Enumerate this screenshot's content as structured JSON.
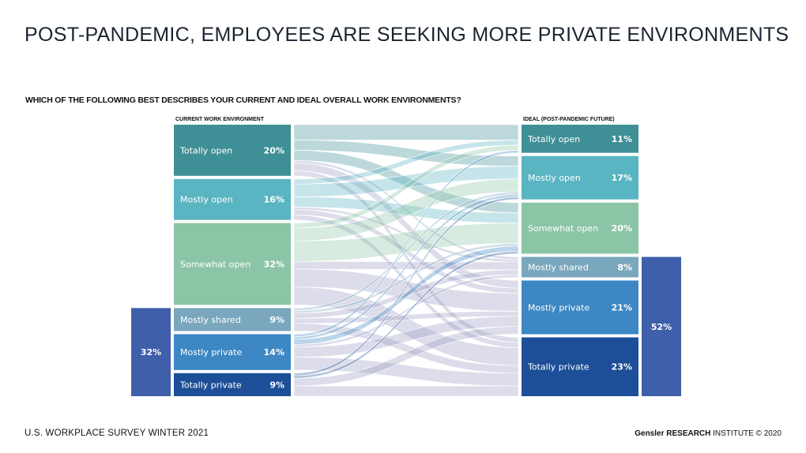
{
  "title": "POST-PANDEMIC, EMPLOYEES ARE SEEKING MORE PRIVATE ENVIRONMENTS",
  "question": "WHICH OF THE FOLLOWING BEST DESCRIBES YOUR CURRENT AND IDEAL OVERALL WORK ENVIRONMENTS?",
  "footer": {
    "survey": "U.S. WORKPLACE SURVEY WINTER 2021",
    "brand": "Gensler RESEARCH",
    "institute": "INSTITUTE © 2020"
  },
  "chart_data": {
    "type": "sankey",
    "left_header": "CURRENT WORK ENVIRONMENT",
    "right_header": "IDEAL (POST-PANDEMIC FUTURE)",
    "left": [
      {
        "label": "Totally open",
        "value": 20,
        "display": "20%",
        "color": "#3f8f96"
      },
      {
        "label": "Mostly open",
        "value": 16,
        "display": "16%",
        "color": "#5ab5c2"
      },
      {
        "label": "Somewhat open",
        "value": 32,
        "display": "32%",
        "color": "#8cc5a6"
      },
      {
        "label": "Mostly shared",
        "value": 9,
        "display": "9%",
        "color": "#7aa7bd"
      },
      {
        "label": "Mostly private",
        "value": 14,
        "display": "14%",
        "color": "#3d87c4"
      },
      {
        "label": "Totally private",
        "value": 9,
        "display": "9%",
        "color": "#1d4f98"
      }
    ],
    "right": [
      {
        "label": "Totally open",
        "value": 11,
        "display": "11%",
        "color": "#3f8f96"
      },
      {
        "label": "Mostly open",
        "value": 17,
        "display": "17%",
        "color": "#5ab5c2"
      },
      {
        "label": "Somewhat open",
        "value": 20,
        "display": "20%",
        "color": "#8cc5a6"
      },
      {
        "label": "Mostly shared",
        "value": 8,
        "display": "8%",
        "color": "#7aa7bd"
      },
      {
        "label": "Mostly private",
        "value": 21,
        "display": "21%",
        "color": "#3d87c4"
      },
      {
        "label": "Totally private",
        "value": 23,
        "display": "23%",
        "color": "#1d4f98"
      }
    ],
    "left_group": {
      "display": "32%",
      "color": "#3f5faa"
    },
    "right_group": {
      "display": "52%",
      "color": "#3f5faa"
    },
    "flows": [
      [
        6,
        4,
        4,
        1,
        3,
        2
      ],
      [
        2,
        5,
        4,
        1,
        2,
        2
      ],
      [
        2,
        5,
        8,
        3,
        7,
        7
      ],
      [
        0,
        1,
        1,
        2,
        2,
        3
      ],
      [
        1,
        1,
        2,
        1,
        4,
        5
      ],
      [
        0,
        1,
        1,
        0,
        3,
        4
      ]
    ]
  }
}
